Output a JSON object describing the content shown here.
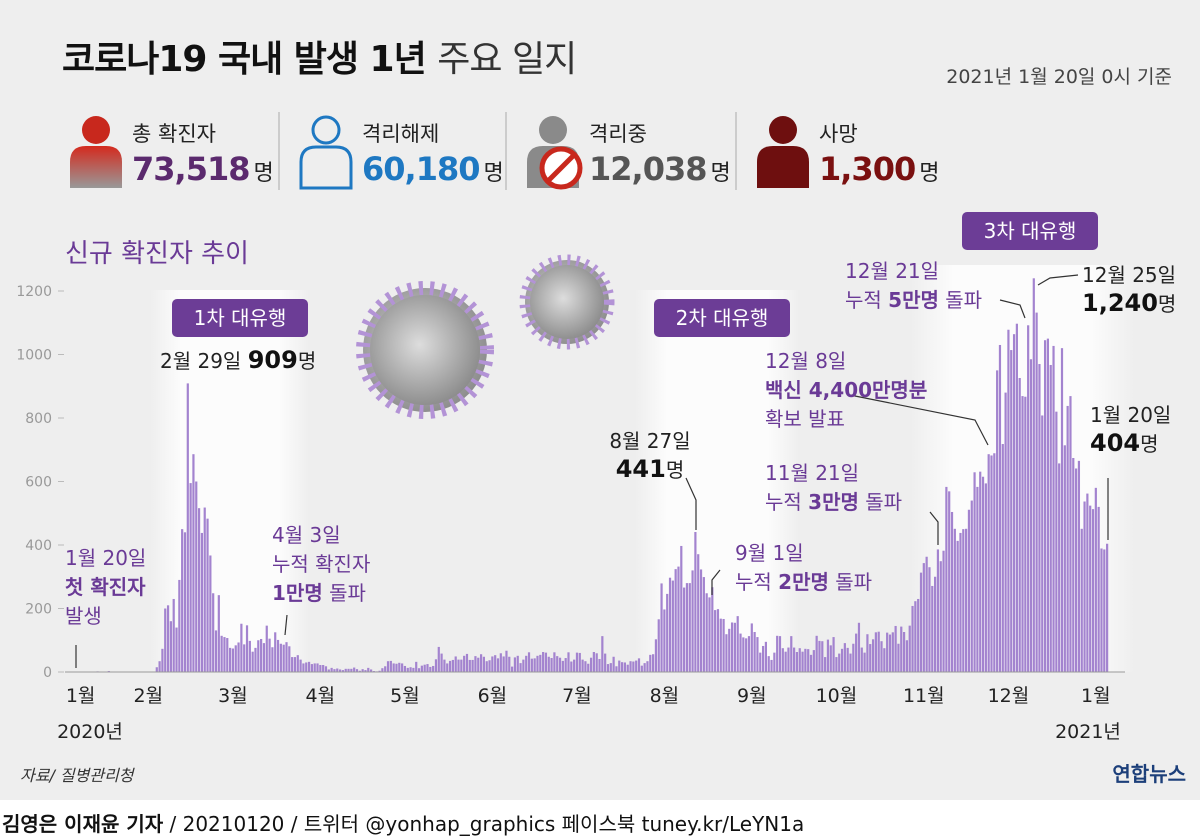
{
  "header": {
    "title": "코로나19 국내 발생 1년",
    "title_sub": "주요 일지",
    "date": "2021년 1월 20일 0시 기준"
  },
  "stats": [
    {
      "label": "총 확진자",
      "value": "73,518",
      "unit": "명"
    },
    {
      "label": "격리해제",
      "value": "60,180",
      "unit": "명"
    },
    {
      "label": "격리중",
      "value": "12,038",
      "unit": "명"
    },
    {
      "label": "사망",
      "value": "1,300",
      "unit": "명"
    }
  ],
  "chart_data": {
    "type": "bar",
    "title": "신규 확진자 추이",
    "color": "#a383cf",
    "values": [
      1,
      0,
      0,
      0,
      1,
      0,
      0,
      1,
      2,
      1,
      1,
      0,
      3,
      1,
      1,
      0,
      1,
      1,
      0,
      0,
      0,
      1,
      0,
      0,
      0,
      0,
      0,
      0,
      1,
      15,
      34,
      73,
      200,
      210,
      160,
      230,
      140,
      290,
      450,
      440,
      909,
      595,
      686,
      600,
      516,
      438,
      518,
      483,
      367,
      248,
      131,
      242,
      114,
      110,
      107,
      76,
      74,
      84,
      93,
      152,
      87,
      147,
      98,
      64,
      76,
      100,
      104,
      91,
      146,
      105,
      78,
      125,
      101,
      89,
      86,
      94,
      81,
      47,
      47,
      53,
      39,
      27,
      30,
      32,
      25,
      27,
      27,
      22,
      22,
      18,
      8,
      13,
      9,
      11,
      8,
      6,
      10,
      10,
      10,
      14,
      9,
      4,
      9,
      6,
      13,
      8,
      3,
      2,
      4,
      12,
      18,
      34,
      35,
      27,
      26,
      29,
      27,
      19,
      13,
      15,
      13,
      32,
      12,
      20,
      23,
      25,
      16,
      19,
      40,
      79,
      58,
      39,
      27,
      35,
      38,
      49,
      39,
      39,
      51,
      57,
      38,
      38,
      50,
      45,
      56,
      48,
      34,
      37,
      49,
      53,
      43,
      59,
      49,
      67,
      48,
      17,
      46,
      51,
      28,
      39,
      51,
      62,
      42,
      43,
      51,
      54,
      63,
      61,
      48,
      44,
      62,
      50,
      45,
      35,
      44,
      62,
      33,
      39,
      61,
      60,
      39,
      34,
      26,
      45,
      63,
      59,
      41,
      113,
      58,
      25,
      28,
      48,
      18,
      36,
      31,
      30,
      23,
      34,
      33,
      36,
      43,
      20,
      28,
      34,
      54,
      56,
      103,
      166,
      279,
      197,
      246,
      297,
      288,
      324,
      332,
      397,
      266,
      280,
      280,
      320,
      441,
      371,
      323,
      299,
      248,
      235,
      267,
      195,
      198,
      168,
      167,
      119,
      136,
      156,
      155,
      176,
      121,
      109,
      106,
      113,
      153,
      126,
      110,
      61,
      82,
      95,
      50,
      38,
      61,
      114,
      113,
      75,
      64,
      77,
      113,
      77,
      63,
      75,
      64,
      73,
      72,
      54,
      69,
      114,
      98,
      97,
      47,
      102,
      84,
      110,
      47,
      58,
      73,
      91,
      76,
      58,
      89,
      121,
      155,
      77,
      61,
      119,
      88,
      103,
      125,
      127,
      97,
      75,
      124,
      118,
      125,
      145,
      89,
      143,
      126,
      100,
      146,
      208,
      223,
      230,
      313,
      343,
      363,
      330,
      271,
      300,
      386,
      349,
      382,
      583,
      569,
      504,
      451,
      413,
      438,
      450,
      451,
      511,
      540,
      629,
      583,
      631,
      615,
      594,
      686,
      682,
      689,
      950,
      1030,
      718,
      880,
      1078,
      1014,
      1064,
      1097,
      926,
      869,
      867,
      1092,
      985,
      1240,
      1132,
      970,
      808,
      1045,
      1050,
      967,
      1027,
      820,
      657,
      1020,
      714,
      838,
      869,
      674,
      641,
      665,
      451,
      537,
      562,
      524,
      513,
      580,
      520,
      389,
      386,
      404
    ],
    "ylim": [
      0,
      1200
    ],
    "yticks": [
      0,
      200,
      400,
      600,
      800,
      1000,
      1200
    ],
    "xticks": [
      {
        "value": 2,
        "label": "1월"
      },
      {
        "value": 26,
        "label": "2월"
      },
      {
        "value": 56,
        "label": "3월"
      },
      {
        "value": 87,
        "label": "4월"
      },
      {
        "value": 117,
        "label": "5월"
      },
      {
        "value": 148,
        "label": "6월"
      },
      {
        "value": 178,
        "label": "7월"
      },
      {
        "value": 209,
        "label": "8월"
      },
      {
        "value": 240,
        "label": "9월"
      },
      {
        "value": 270,
        "label": "10월"
      },
      {
        "value": 301,
        "label": "11월"
      },
      {
        "value": 331,
        "label": "12월"
      },
      {
        "value": 362,
        "label": "1월"
      }
    ],
    "year_labels": [
      "2020년",
      "2021년"
    ],
    "waves": [
      "1차 대유행",
      "2차 대유행",
      "3차 대유행"
    ],
    "annotations": [
      [
        [
          {
            "t": "1월 20일"
          }
        ],
        [
          {
            "t": "첫 확진자",
            "b": true
          }
        ],
        [
          {
            "t": "발생"
          }
        ]
      ],
      [
        [
          {
            "t": "2월 29일 "
          },
          {
            "t": "909",
            "b": true
          },
          {
            "t": "명"
          }
        ]
      ],
      [
        [
          {
            "t": "4월 3일"
          }
        ],
        [
          {
            "t": "누적 확진자"
          }
        ],
        [
          {
            "t": "1만명",
            "b": true
          },
          {
            "t": " 돌파"
          }
        ]
      ],
      [
        [
          {
            "t": "8월 27일"
          }
        ],
        [
          {
            "t": "441",
            "b": true
          },
          {
            "t": "명"
          }
        ]
      ],
      [
        [
          {
            "t": "9월 1일"
          }
        ],
        [
          {
            "t": "누적 "
          },
          {
            "t": "2만명",
            "b": true
          },
          {
            "t": " 돌파"
          }
        ]
      ],
      [
        [
          {
            "t": "11월 21일"
          }
        ],
        [
          {
            "t": "누적 "
          },
          {
            "t": "3만명",
            "b": true
          },
          {
            "t": " 돌파"
          }
        ]
      ],
      [
        [
          {
            "t": "12월 8일"
          }
        ],
        [
          {
            "t": "백신 4,400만명분",
            "b": true
          }
        ],
        [
          {
            "t": "확보 발표"
          }
        ]
      ],
      [
        [
          {
            "t": "12월 21일"
          }
        ],
        [
          {
            "t": "누적 "
          },
          {
            "t": "5만명",
            "b": true
          },
          {
            "t": " 돌파"
          }
        ]
      ],
      [
        [
          {
            "t": "12월 25일"
          }
        ],
        [
          {
            "t": "1,240",
            "b": true
          },
          {
            "t": "명"
          }
        ]
      ],
      [
        [
          {
            "t": "1월 20일"
          }
        ],
        [
          {
            "t": "404",
            "b": true
          },
          {
            "t": "명"
          }
        ]
      ]
    ]
  },
  "footer": {
    "source": "자료/ 질병관리청",
    "logo": "연합뉴스",
    "byline": "김영은 이재윤 기자",
    "credits": " / 20210120 / 트위터 @yonhap_graphics  페이스북 tuney.kr/LeYN1a"
  }
}
